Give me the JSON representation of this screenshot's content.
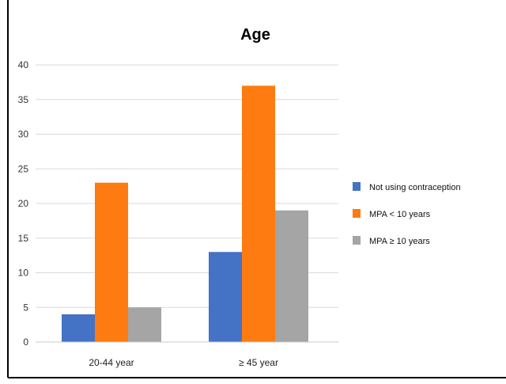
{
  "chart_data": {
    "type": "bar",
    "title": "Age",
    "xlabel": "",
    "ylabel": "",
    "categories": [
      "20-44 year",
      "≥ 45 year"
    ],
    "series": [
      {
        "name": "Not using contraception",
        "color": "#4472c4",
        "values": [
          4,
          13
        ]
      },
      {
        "name": "MPA < 10 years",
        "color": "#fd7b10",
        "values": [
          23,
          37
        ]
      },
      {
        "name": "MPA ≥ 10 years",
        "color": "#a5a5a5",
        "values": [
          5,
          19
        ]
      }
    ],
    "ylim": [
      0,
      40
    ],
    "yticks": [
      "0",
      "5",
      "10",
      "15",
      "20",
      "25",
      "30",
      "35",
      "40"
    ],
    "grid": true,
    "legend_position": "right"
  }
}
